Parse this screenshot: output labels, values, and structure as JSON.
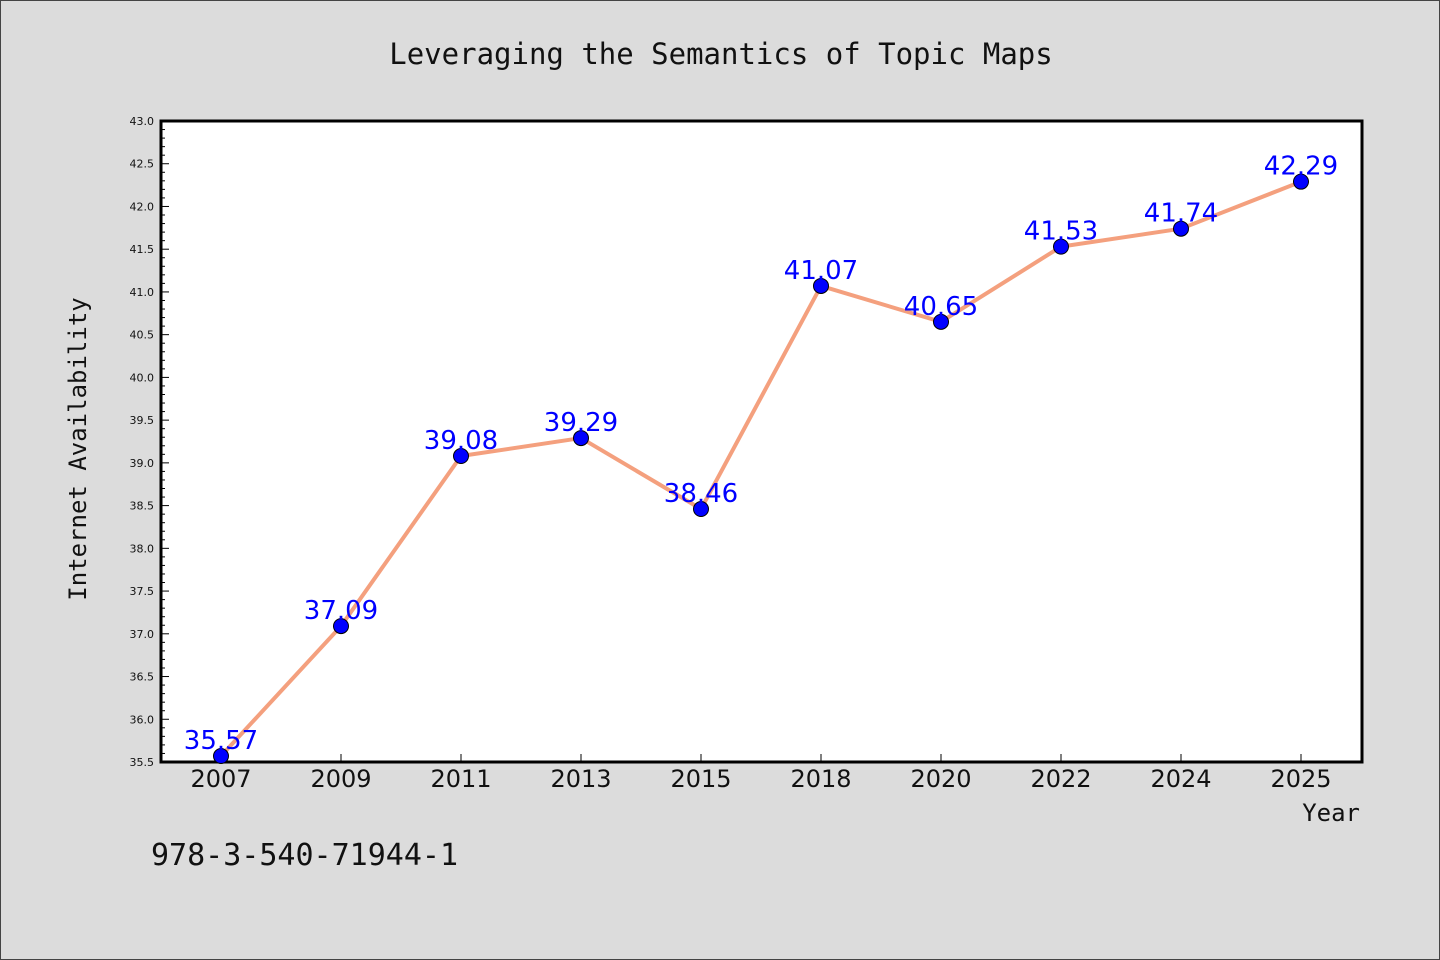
{
  "chart_data": {
    "type": "line",
    "title": "Leveraging the Semantics of Topic Maps",
    "xlabel": "Year",
    "ylabel": "Internet Availability",
    "categories": [
      "2007",
      "2009",
      "2011",
      "2013",
      "2015",
      "2018",
      "2020",
      "2022",
      "2024",
      "2025"
    ],
    "series": [
      {
        "values": [
          35.57,
          37.09,
          39.08,
          39.29,
          38.46,
          41.07,
          40.65,
          41.53,
          41.74,
          42.29
        ],
        "line_color": "#f4a07e",
        "marker_color": "#0000ff"
      }
    ],
    "data_labels": [
      "35.57",
      "37.09",
      "39.08",
      "39.29",
      "38.46",
      "41.07",
      "40.65",
      "41.53",
      "41.74",
      "42.29"
    ],
    "ylim": [
      35.5,
      43.0
    ],
    "yticks": [
      "35.5",
      "36.0",
      "36.5",
      "37.0",
      "37.5",
      "38.0",
      "38.5",
      "39.0",
      "39.5",
      "40.0",
      "40.5",
      "41.0",
      "41.5",
      "42.0",
      "42.5",
      "43.0"
    ],
    "grid": false,
    "legend": "none"
  },
  "caption": "978-3-540-71944-1"
}
